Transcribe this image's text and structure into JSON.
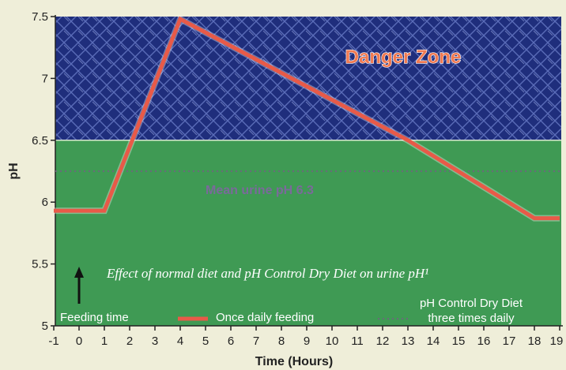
{
  "chart_data": {
    "type": "line",
    "xlabel": "Time (Hours)",
    "ylabel": "pH",
    "xlim": [
      -1,
      19
    ],
    "ylim": [
      5,
      7.5
    ],
    "x_ticks": [
      "-1",
      "0",
      "1",
      "2",
      "3",
      "4",
      "5",
      "6",
      "7",
      "8",
      "9",
      "10",
      "11",
      "12",
      "13",
      "14",
      "15",
      "16",
      "17",
      "18",
      "19"
    ],
    "y_ticks": [
      "5",
      "5.5",
      "6",
      "6.5",
      "7",
      "7.5"
    ],
    "grid": false,
    "zones": [
      {
        "label": "Danger Zone",
        "from": 6.5,
        "to": 7.5,
        "color": "#1e2d7a"
      },
      {
        "label": "",
        "from": 5,
        "to": 6.5,
        "color": "#3f9a54"
      }
    ],
    "reference_line": {
      "label": "Mean urine pH 6.3",
      "y": 6.25,
      "legend_label": "pH Control Dry Diet three times daily",
      "color": "#6a6a7a"
    },
    "series": [
      {
        "name": "Once daily feeding",
        "color": "#e85a48",
        "x": [
          -1,
          1,
          4,
          13,
          18,
          19
        ],
        "y": [
          5.93,
          5.93,
          7.48,
          6.5,
          5.87,
          5.87
        ]
      }
    ],
    "feeding_marker": {
      "x": 0,
      "label": "Feeding time"
    },
    "caption": "Effect of normal diet and pH Control Dry Diet on urine pH¹",
    "legend": {
      "feeding_time": "Feeding time",
      "once_daily": "Once daily feeding",
      "dry_diet_line1": "pH Control Dry Diet",
      "dry_diet_line2": "three times daily"
    }
  }
}
